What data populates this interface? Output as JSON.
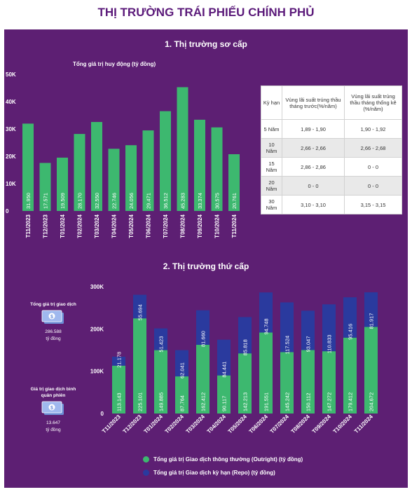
{
  "title": "THỊ TRƯỜNG TRÁI PHIẾU CHÍNH PHỦ",
  "primary": {
    "section_title": "1. Thị trường sơ cấp",
    "chart_subtitle": "Tổng giá trị huy động (tỷ đồng)"
  },
  "secondary": {
    "section_title": "2. Thị trường thứ cấp",
    "stats": [
      {
        "label": "Tổng giá trị giao dịch",
        "value": "286.588",
        "unit": "tỷ đồng"
      },
      {
        "label": "Giá trị giao dịch bình quân phiên",
        "value": "13.647",
        "unit": "tỷ đồng"
      }
    ],
    "icon": "money-bill-icon"
  },
  "rates_table": {
    "headers": [
      "Kỳ hạn",
      "Vùng lãi suất trúng thầu tháng trước(%/năm)",
      "Vùng lãi suất trúng thầu tháng thống kê (%/năm)"
    ],
    "rows": [
      [
        "5 Năm",
        "1,89 - 1,90",
        "1,90 - 1,92"
      ],
      [
        "10 Năm",
        "2,66 - 2,66",
        "2,66 - 2,68"
      ],
      [
        "15 Năm",
        "2,86 - 2,86",
        "0 - 0"
      ],
      [
        "20 Năm",
        "0 - 0",
        "0 - 0"
      ],
      [
        "30 Năm",
        "3,10 - 3,10",
        "3,15 - 3,15"
      ]
    ]
  },
  "colors": {
    "background": "#5d1f73",
    "title": "#5b1a7a",
    "outright": "#3db86f",
    "repo": "#2a3a9e"
  },
  "chart_data": [
    {
      "type": "bar",
      "title": "Tổng giá trị huy động (tỷ đồng)",
      "categories": [
        "T11/2023",
        "T12/2023",
        "T01/2024",
        "T02/2024",
        "T03/2024",
        "T04/2024",
        "T05/2024",
        "T06/2024",
        "T07/2024",
        "T08/2024",
        "T09/2024",
        "T10/2024",
        "T11/2024"
      ],
      "values": [
        31950,
        17571,
        19509,
        28170,
        32550,
        22746,
        24056,
        29471,
        36512,
        45283,
        33374,
        30575,
        20761
      ],
      "value_labels": [
        "31.950",
        "17.571",
        "19.509",
        "28.170",
        "32.550",
        "22.746",
        "24.056",
        "29.471",
        "36.512",
        "45.283",
        "33.374",
        "30.575",
        "20.761"
      ],
      "yticks": [
        "0",
        "10K",
        "20K",
        "30K",
        "40K",
        "50K"
      ],
      "ylim": [
        0,
        50000
      ],
      "grid": false
    },
    {
      "type": "bar",
      "stacked": true,
      "categories": [
        "T11/2023",
        "T12/2023",
        "T01/2024",
        "T02/2024",
        "T03/2024",
        "T04/2024",
        "T05/2024",
        "T06/2024",
        "T07/2024",
        "T08/2024",
        "T09/2024",
        "T10/2024",
        "T11/2024"
      ],
      "series": [
        {
          "name": "Tổng giá trị Giao dịch thông thường (Outright) (tỷ đồng)",
          "values": [
            113143,
            225101,
            149885,
            87764,
            162412,
            90117,
            142213,
            191551,
            145242,
            150112,
            147272,
            179412,
            204672
          ],
          "labels": [
            "113.143",
            "225.101",
            "149.885",
            "87.764",
            "162.412",
            "90.117",
            "142.213",
            "191.551",
            "145.242",
            "150.112",
            "147.272",
            "179.412",
            "204.672"
          ]
        },
        {
          "name": "Tổng giá trị Giao dịch kỳ hạn (Repo) (tỷ đồng)",
          "values": [
            21178,
            55694,
            51423,
            62041,
            81660,
            84441,
            85818,
            94748,
            117524,
            93047,
            110833,
            95416,
            81917
          ],
          "labels": [
            "21.178",
            "55.694",
            "51.423",
            "62.041",
            "81.660",
            "84.441",
            "85.818",
            "94.748",
            "117.524",
            "93.047",
            "110.833",
            "95.416",
            "81.917"
          ]
        }
      ],
      "yticks": [
        "0",
        "100K",
        "200K",
        "300K"
      ],
      "ylim": [
        0,
        300000
      ],
      "legend": "bottom",
      "grid": false
    }
  ]
}
